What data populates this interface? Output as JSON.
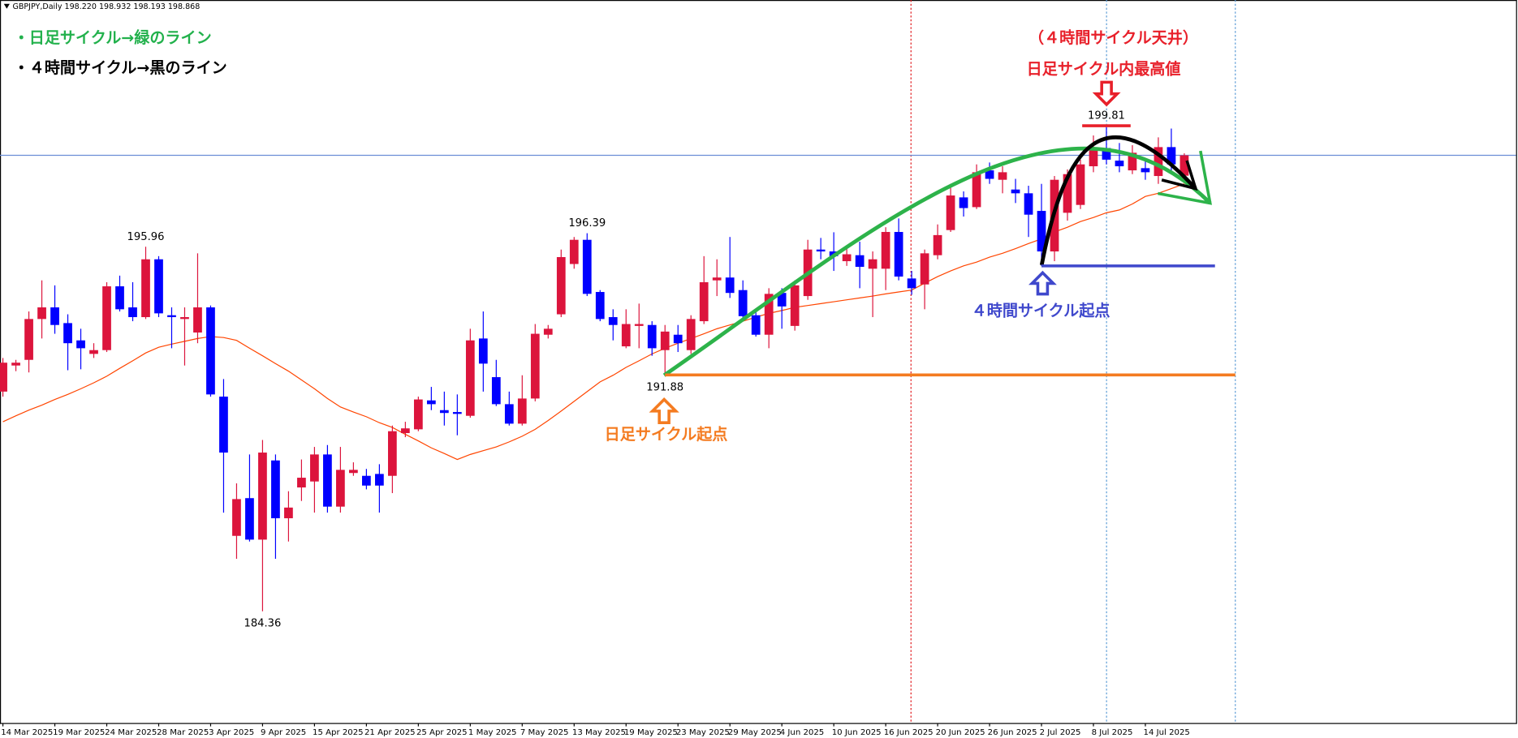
{
  "chart_data": {
    "type": "candlestick",
    "header": "GBPJPY,Daily  198.220 198.932 198.193 198.868",
    "categories": [
      "14 Mar 2025",
      null,
      null,
      null,
      "19 Mar 2025",
      null,
      null,
      null,
      "24 Mar 2025",
      null,
      null,
      null,
      "28 Mar 2025",
      null,
      null,
      null,
      "3 Apr 2025",
      null,
      null,
      null,
      "9 Apr 2025",
      null,
      null,
      null,
      "15 Apr 2025",
      null,
      null,
      null,
      "21 Apr 2025",
      null,
      null,
      null,
      "25 Apr 2025",
      null,
      null,
      null,
      "1 May 2025",
      null,
      null,
      null,
      "7 May 2025",
      null,
      null,
      null,
      "13 May 2025",
      null,
      null,
      null,
      "19 May 2025",
      null,
      null,
      null,
      "23 May 2025",
      null,
      null,
      null,
      "29 May 2025",
      null,
      null,
      null,
      "4 Jun 2025",
      null,
      null,
      null,
      "10 Jun 2025",
      null,
      null,
      null,
      "16 Jun 2025",
      null,
      null,
      null,
      "20 Jun 2025",
      null,
      null,
      null,
      "26 Jun 2025",
      null,
      null,
      null,
      "2 Jul 2025",
      null,
      null,
      null,
      "8 Jul 2025",
      null,
      null,
      null,
      "14 Jul 2025",
      null,
      null,
      null
    ],
    "open": [
      191.35,
      192.18,
      192.36,
      193.66,
      194.03,
      193.53,
      192.98,
      192.55,
      192.67,
      194.7,
      194.03,
      193.72,
      195.56,
      193.78,
      193.66,
      193.23,
      194.03,
      191.19,
      186.76,
      187.96,
      186.64,
      189.16,
      187.32,
      188.3,
      188.49,
      189.35,
      187.69,
      188.76,
      188.67,
      188.73,
      188.67,
      190.03,
      190.15,
      191.07,
      190.76,
      190.7,
      190.58,
      193.04,
      191.81,
      190.95,
      190.33,
      191.13,
      193.16,
      193.81,
      195.41,
      196.18,
      194.52,
      193.72,
      192.79,
      193.44,
      193.47,
      192.67,
      193.16,
      192.67,
      193.59,
      194.89,
      194.98,
      194.58,
      193.78,
      193.16,
      194.49,
      193.44,
      194.39,
      195.87,
      195.81,
      195.5,
      195.69,
      195.26,
      195.26,
      196.43,
      194.95,
      194.76,
      195.69,
      196.49,
      197.53,
      197.22,
      198.39,
      198.09,
      197.78,
      197.66,
      197.1,
      195.81,
      197.04,
      197.29,
      198.52,
      199.1,
      198.7,
      198.39,
      198.46,
      198.21,
      199.13,
      198.22
    ],
    "high": [
      192.42,
      192.36,
      193.9,
      194.89,
      194.73,
      193.81,
      193.35,
      192.89,
      194.83,
      195.04,
      194.83,
      195.96,
      195.66,
      194.03,
      194.03,
      195.75,
      194.09,
      191.75,
      188.43,
      189.35,
      189.81,
      189.35,
      188.18,
      189.19,
      189.59,
      189.65,
      189.59,
      189.1,
      188.89,
      189.04,
      190.27,
      190.39,
      191.19,
      191.5,
      191.35,
      191.26,
      193.35,
      193.9,
      192.36,
      191.35,
      191.87,
      193.5,
      193.47,
      195.87,
      196.27,
      196.39,
      194.58,
      193.97,
      193.97,
      194.15,
      193.59,
      193.47,
      193.47,
      193.78,
      195.66,
      195.56,
      196.27,
      194.89,
      193.97,
      194.64,
      194.64,
      194.89,
      196.18,
      196.24,
      196.42,
      195.96,
      196.12,
      195.81,
      196.58,
      196.86,
      195.19,
      195.87,
      196.67,
      197.96,
      197.72,
      198.58,
      198.64,
      198.52,
      198.12,
      197.9,
      197.96,
      198.21,
      198.42,
      198.73,
      199.5,
      199.81,
      199.26,
      199.19,
      198.73,
      199.44,
      199.72,
      198.932
    ],
    "low": [
      191.19,
      192.0,
      191.96,
      193.04,
      193.19,
      192.03,
      192.06,
      192.42,
      192.61,
      193.9,
      193.59,
      193.66,
      193.72,
      192.73,
      192.18,
      192.89,
      191.19,
      187.5,
      186.03,
      186.58,
      184.36,
      186.03,
      186.58,
      187.87,
      187.5,
      187.5,
      187.5,
      188.67,
      188.24,
      187.5,
      188.12,
      189.9,
      190.09,
      190.76,
      190.27,
      189.96,
      190.52,
      191.35,
      190.89,
      190.27,
      190.27,
      191.04,
      193.04,
      193.72,
      195.26,
      194.39,
      193.59,
      192.98,
      192.73,
      192.73,
      192.49,
      191.88,
      192.61,
      192.55,
      193.5,
      194.39,
      194.33,
      193.66,
      193.1,
      192.73,
      193.35,
      193.29,
      194.27,
      195.56,
      195.19,
      195.35,
      194.64,
      193.72,
      194.58,
      194.89,
      194.43,
      193.97,
      195.56,
      196.43,
      196.92,
      197.16,
      197.96,
      197.66,
      197.35,
      196.27,
      195.35,
      195.5,
      196.79,
      197.16,
      198.33,
      198.58,
      198.33,
      198.27,
      198.09,
      197.96,
      198.27,
      198.193
    ],
    "close": [
      192.27,
      192.27,
      193.66,
      194.03,
      193.47,
      192.89,
      192.73,
      192.67,
      194.7,
      193.97,
      193.72,
      195.56,
      193.84,
      193.72,
      193.72,
      194.03,
      191.26,
      189.41,
      187.93,
      186.64,
      189.41,
      187.32,
      187.66,
      188.61,
      189.35,
      187.69,
      188.86,
      188.86,
      188.36,
      188.36,
      190.09,
      190.18,
      191.1,
      190.95,
      190.67,
      190.64,
      192.98,
      192.24,
      190.95,
      190.33,
      191.13,
      193.19,
      193.35,
      195.63,
      196.18,
      194.46,
      193.66,
      193.47,
      193.5,
      193.5,
      192.73,
      193.26,
      192.89,
      193.66,
      194.83,
      194.98,
      194.49,
      193.75,
      193.16,
      194.46,
      194.06,
      194.73,
      195.87,
      195.81,
      195.66,
      195.72,
      195.32,
      195.56,
      196.43,
      195.01,
      194.64,
      195.75,
      196.33,
      197.59,
      197.19,
      198.33,
      198.12,
      198.33,
      197.66,
      196.98,
      195.81,
      198.09,
      198.27,
      198.58,
      199.07,
      198.73,
      198.52,
      198.95,
      198.33,
      199.13,
      198.58,
      198.868
    ],
    "ma": {
      "color": "#ff4500",
      "values": [
        190.39,
        190.58,
        190.76,
        190.92,
        191.1,
        191.26,
        191.44,
        191.63,
        191.84,
        192.09,
        192.33,
        192.58,
        192.76,
        192.86,
        192.95,
        193.04,
        193.1,
        193.07,
        192.98,
        192.73,
        192.49,
        192.24,
        192.0,
        191.72,
        191.44,
        191.13,
        190.86,
        190.7,
        190.55,
        190.36,
        190.21,
        189.99,
        189.78,
        189.56,
        189.38,
        189.19,
        189.35,
        189.47,
        189.59,
        189.75,
        189.93,
        190.15,
        190.43,
        190.73,
        191.04,
        191.35,
        191.66,
        191.87,
        192.12,
        192.33,
        192.55,
        192.73,
        192.89,
        193.04,
        193.19,
        193.35,
        193.47,
        193.59,
        193.72,
        193.84,
        193.93,
        194.03,
        194.09,
        194.15,
        194.21,
        194.27,
        194.33,
        194.39,
        194.46,
        194.52,
        194.58,
        194.8,
        195.01,
        195.19,
        195.35,
        195.47,
        195.63,
        195.75,
        195.9,
        196.06,
        196.21,
        196.43,
        196.58,
        196.76,
        196.89,
        197.04,
        197.13,
        197.32,
        197.56,
        197.66,
        197.81,
        197.96
      ]
    },
    "ylim": [
      180.79,
      203.81
    ],
    "up_color": "#dc143c",
    "down_color": "#0000ff",
    "labeled_highs": [
      11,
      45,
      85
    ],
    "labeled_lows": [
      20,
      51
    ],
    "annotations": {
      "legend_daily": "・日足サイクル→緑のライン",
      "legend_4h": "・４時間サイクル→黒のライン",
      "h4_top": "（４時間サイクル天井）",
      "daily_high": "日足サイクル内最高値",
      "daily_start": "日足サイクル起点",
      "h4_start": "４時間サイクル起点"
    }
  }
}
